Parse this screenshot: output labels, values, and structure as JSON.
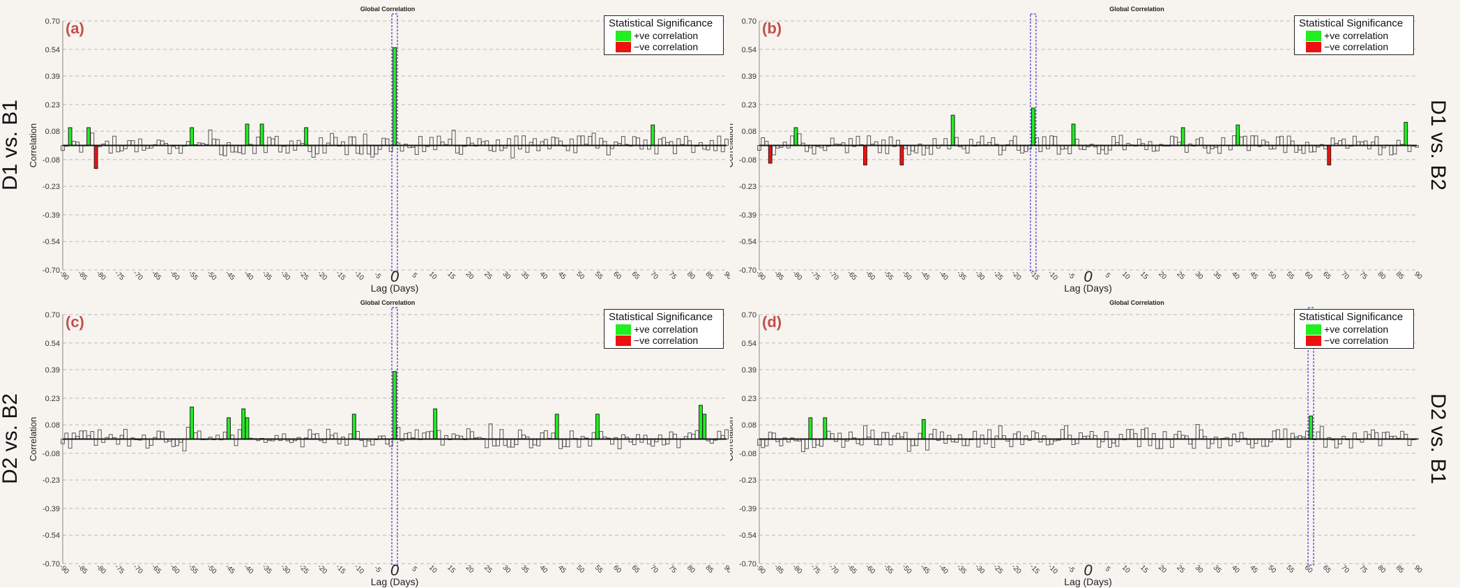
{
  "colors": {
    "background": "#f7f3ef",
    "positive": "#22ee22",
    "negative": "#ee1111",
    "panel_letter": "#c0504d",
    "zero_box": "#3a3ad0"
  },
  "legend": {
    "title": "Statistical Significance",
    "positive_label": "+ve correlation",
    "negative_label": "−ve correlation"
  },
  "chart_data": [
    {
      "type": "bar",
      "panel_label": "(a)",
      "title": "Global Correlation",
      "side_label": "D1 vs. B1",
      "side_label_position": "left",
      "xlabel": "Lag (Days)",
      "ylabel": "Correlation",
      "y_ticks": [
        "0.70",
        "0.54",
        "0.39",
        "0.23",
        "0.08",
        "-0.08",
        "-0.23",
        "-0.39",
        "-0.54",
        "-0.70"
      ],
      "x_ticks": [
        "-90",
        "-85",
        "-80",
        "-75",
        "-70",
        "-65",
        "-60",
        "-55",
        "-50",
        "-45",
        "-40",
        "-35",
        "-30",
        "-25",
        "-20",
        "-15",
        "-10",
        "-5",
        "0",
        "5",
        "10",
        "15",
        "20",
        "25",
        "30",
        "35",
        "40",
        "45",
        "50",
        "55",
        "60",
        "65",
        "70",
        "75",
        "80",
        "85",
        "90"
      ],
      "ylim": [
        -0.7,
        0.7
      ],
      "xlim": [
        -90,
        90
      ],
      "grid": true,
      "legend_position": "top-right",
      "highlight_lag": 0,
      "significant_positive": [
        {
          "lag": -88,
          "value": 0.1
        },
        {
          "lag": -83,
          "value": 0.1
        },
        {
          "lag": -55,
          "value": 0.1
        },
        {
          "lag": -40,
          "value": 0.12
        },
        {
          "lag": -36,
          "value": 0.12
        },
        {
          "lag": -24,
          "value": 0.1
        },
        {
          "lag": 0,
          "value": 0.55
        },
        {
          "lag": 70,
          "value": 0.115
        }
      ],
      "significant_negative": [
        {
          "lag": -81,
          "value": -0.13
        }
      ],
      "seed": 17
    },
    {
      "type": "bar",
      "panel_label": "(b)",
      "title": "Global Correlation",
      "side_label": "D1 vs. B2",
      "side_label_position": "right",
      "xlabel": "Lag (Days)",
      "ylabel": "Correlation",
      "y_ticks": [
        "0.70",
        "0.54",
        "0.39",
        "0.23",
        "0.08",
        "-0.08",
        "-0.23",
        "-0.39",
        "-0.54",
        "-0.70"
      ],
      "x_ticks": [
        "-90",
        "-85",
        "-80",
        "-75",
        "-70",
        "-65",
        "-60",
        "-55",
        "-50",
        "-45",
        "-40",
        "-35",
        "-30",
        "-25",
        "-20",
        "-15",
        "-10",
        "-5",
        "0",
        "5",
        "10",
        "15",
        "20",
        "25",
        "30",
        "35",
        "40",
        "45",
        "50",
        "55",
        "60",
        "65",
        "70",
        "75",
        "80",
        "85",
        "90"
      ],
      "ylim": [
        -0.7,
        0.7
      ],
      "xlim": [
        -90,
        90
      ],
      "grid": true,
      "legend_position": "top-right",
      "highlight_lag": -15,
      "significant_positive": [
        {
          "lag": -80,
          "value": 0.1
        },
        {
          "lag": -37,
          "value": 0.17
        },
        {
          "lag": -15,
          "value": 0.21
        },
        {
          "lag": -4,
          "value": 0.12
        },
        {
          "lag": 26,
          "value": 0.1
        },
        {
          "lag": 41,
          "value": 0.115
        },
        {
          "lag": 87,
          "value": 0.13
        }
      ],
      "significant_negative": [
        {
          "lag": -87,
          "value": -0.1
        },
        {
          "lag": -61,
          "value": -0.11
        },
        {
          "lag": -51,
          "value": -0.11
        },
        {
          "lag": 66,
          "value": -0.11
        }
      ],
      "seed": 41
    },
    {
      "type": "bar",
      "panel_label": "(c)",
      "title": "Global Correlation",
      "side_label": "D2 vs. B2",
      "side_label_position": "left",
      "xlabel": "Lag (Days)",
      "ylabel": "Correlation",
      "y_ticks": [
        "0.70",
        "0.54",
        "0.39",
        "0.23",
        "0.08",
        "-0.08",
        "-0.23",
        "-0.39",
        "-0.54",
        "-0.70"
      ],
      "x_ticks": [
        "-90",
        "-85",
        "-80",
        "-75",
        "-70",
        "-65",
        "-60",
        "-55",
        "-50",
        "-45",
        "-40",
        "-35",
        "-30",
        "-25",
        "-20",
        "-15",
        "-10",
        "-5",
        "0",
        "5",
        "10",
        "15",
        "20",
        "25",
        "30",
        "35",
        "40",
        "45",
        "50",
        "55",
        "60",
        "65",
        "70",
        "75",
        "80",
        "85",
        "90"
      ],
      "ylim": [
        -0.7,
        0.7
      ],
      "xlim": [
        -90,
        90
      ],
      "grid": true,
      "legend_position": "top-right",
      "highlight_lag": 0,
      "significant_positive": [
        {
          "lag": -55,
          "value": 0.18
        },
        {
          "lag": -45,
          "value": 0.12
        },
        {
          "lag": -41,
          "value": 0.17
        },
        {
          "lag": -40,
          "value": 0.12
        },
        {
          "lag": -11,
          "value": 0.14
        },
        {
          "lag": 0,
          "value": 0.38
        },
        {
          "lag": 11,
          "value": 0.17
        },
        {
          "lag": 44,
          "value": 0.14
        },
        {
          "lag": 55,
          "value": 0.14
        },
        {
          "lag": 83,
          "value": 0.19
        },
        {
          "lag": 84,
          "value": 0.14
        }
      ],
      "significant_negative": [],
      "seed": 73
    },
    {
      "type": "bar",
      "panel_label": "(d)",
      "title": "Global Correlation",
      "side_label": "D2 vs. B1",
      "side_label_position": "right",
      "xlabel": "Lag (Days)",
      "ylabel": "Correlation",
      "y_ticks": [
        "0.70",
        "0.54",
        "0.39",
        "0.23",
        "0.08",
        "-0.08",
        "-0.23",
        "-0.39",
        "-0.54",
        "-0.70"
      ],
      "x_ticks": [
        "-90",
        "-85",
        "-80",
        "-75",
        "-70",
        "-65",
        "-60",
        "-55",
        "-50",
        "-45",
        "-40",
        "-35",
        "-30",
        "-25",
        "-20",
        "-15",
        "-10",
        "-5",
        "0",
        "5",
        "10",
        "15",
        "20",
        "25",
        "30",
        "35",
        "40",
        "45",
        "50",
        "55",
        "60",
        "65",
        "70",
        "75",
        "80",
        "85",
        "90"
      ],
      "ylim": [
        -0.7,
        0.7
      ],
      "xlim": [
        -90,
        90
      ],
      "grid": true,
      "legend_position": "top-right",
      "highlight_lag": 61,
      "significant_positive": [
        {
          "lag": -76,
          "value": 0.12
        },
        {
          "lag": -72,
          "value": 0.12
        },
        {
          "lag": -45,
          "value": 0.11
        },
        {
          "lag": 61,
          "value": 0.13
        }
      ],
      "significant_negative": [],
      "seed": 97
    }
  ]
}
